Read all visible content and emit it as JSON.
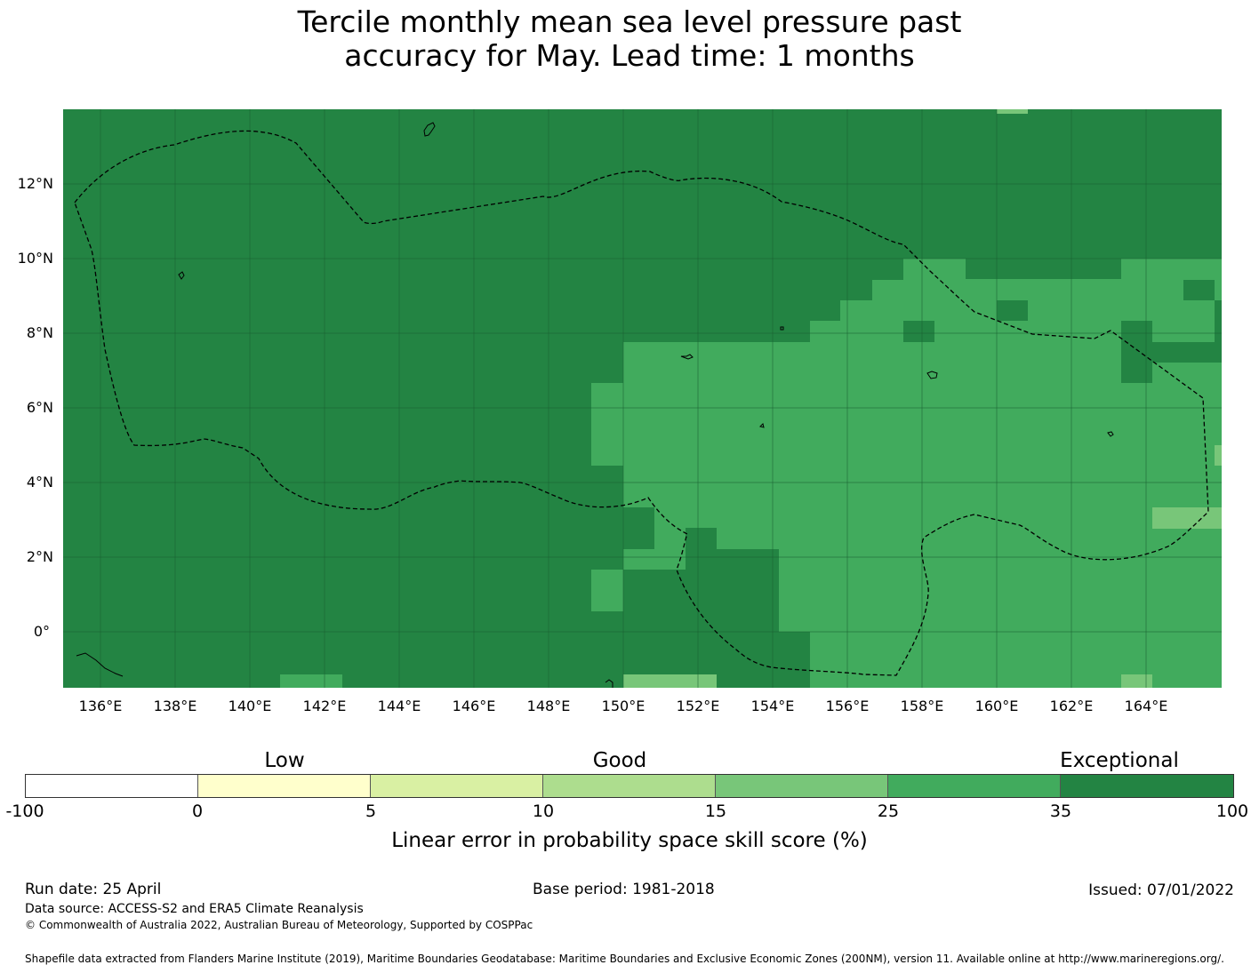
{
  "title": {
    "line1": "Tercile monthly mean sea level pressure past",
    "line2": "accuracy for May. Lead time: 1 months"
  },
  "map": {
    "latitude_labels": [
      "12°N",
      "10°N",
      "8°N",
      "6°N",
      "4°N",
      "2°N",
      "0°"
    ],
    "longitude_labels": [
      "136°E",
      "138°E",
      "140°E",
      "142°E",
      "144°E",
      "146°E",
      "148°E",
      "150°E",
      "152°E",
      "154°E",
      "156°E",
      "158°E",
      "160°E",
      "162°E",
      "164°E"
    ],
    "background_color": "#238443"
  },
  "legend": {
    "category_labels": [
      "Low",
      "Good",
      "Exceptional"
    ],
    "tick_labels": [
      "-100",
      "0",
      "5",
      "10",
      "15",
      "25",
      "35",
      "100"
    ],
    "colors": [
      "#ffffff",
      "#ffffcc",
      "#d9f0a3",
      "#addd8e",
      "#78c679",
      "#41ab5d",
      "#238443"
    ],
    "title": "Linear error in probability space skill score (%)"
  },
  "footer": {
    "run_date": "Run date: 25 April",
    "base_period": "Base period: 1981-2018",
    "issued": "Issued: 07/01/2022",
    "data_source": "Data source: ACCESS-S2 and ERA5 Climate Reanalysis",
    "copyright": "© Commonwealth of Australia 2022, Australian Bureau of Meteorology, Supported by COSPPac",
    "shapefile_credit": "Shapefile data extracted from Flanders Marine Institute (2019), Maritime Boundaries Geodatabase: Maritime Boundaries and Exclusive Economic Zones (200NM), version 11. Available online at http://www.marineregions.org/."
  }
}
